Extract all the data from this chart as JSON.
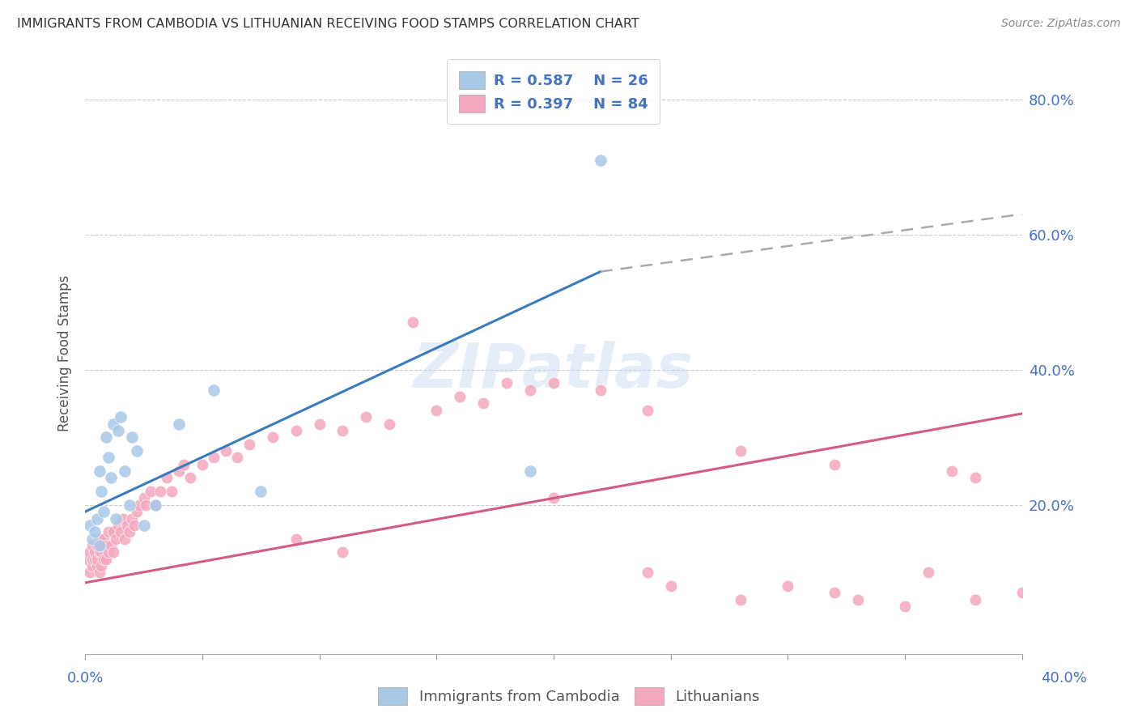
{
  "title": "IMMIGRANTS FROM CAMBODIA VS LITHUANIAN RECEIVING FOOD STAMPS CORRELATION CHART",
  "source": "Source: ZipAtlas.com",
  "ylabel": "Receiving Food Stamps",
  "ytick_labels": [
    "20.0%",
    "40.0%",
    "60.0%",
    "80.0%"
  ],
  "ytick_values": [
    0.2,
    0.4,
    0.6,
    0.8
  ],
  "xlim": [
    0.0,
    0.4
  ],
  "ylim": [
    -0.02,
    0.87
  ],
  "background_color": "#ffffff",
  "legend_color1": "#a8c8e8",
  "legend_color2": "#f4a8be",
  "cambodia_color": "#a8c8e8",
  "lithuanian_color": "#f4a8be",
  "trend_cambodia_color": "#3a7abf",
  "trend_lithuanian_color": "#d45a8a",
  "grid_color": "#cccccc",
  "title_color": "#333333",
  "axis_label_color": "#4472c4",
  "cambodia_x": [
    0.002,
    0.003,
    0.004,
    0.005,
    0.006,
    0.006,
    0.007,
    0.008,
    0.009,
    0.01,
    0.011,
    0.012,
    0.013,
    0.014,
    0.015,
    0.017,
    0.019,
    0.02,
    0.022,
    0.025,
    0.03,
    0.04,
    0.055,
    0.075,
    0.19,
    0.22
  ],
  "cambodia_y": [
    0.17,
    0.15,
    0.16,
    0.18,
    0.14,
    0.25,
    0.22,
    0.19,
    0.3,
    0.27,
    0.24,
    0.32,
    0.18,
    0.31,
    0.33,
    0.25,
    0.2,
    0.3,
    0.28,
    0.17,
    0.2,
    0.32,
    0.37,
    0.22,
    0.25,
    0.71
  ],
  "lithuanian_x": [
    0.001,
    0.002,
    0.002,
    0.003,
    0.003,
    0.003,
    0.004,
    0.004,
    0.005,
    0.005,
    0.005,
    0.006,
    0.006,
    0.006,
    0.007,
    0.007,
    0.007,
    0.008,
    0.008,
    0.009,
    0.009,
    0.01,
    0.01,
    0.011,
    0.012,
    0.012,
    0.013,
    0.014,
    0.015,
    0.016,
    0.017,
    0.018,
    0.019,
    0.02,
    0.021,
    0.022,
    0.023,
    0.025,
    0.026,
    0.028,
    0.03,
    0.032,
    0.035,
    0.037,
    0.04,
    0.042,
    0.045,
    0.05,
    0.055,
    0.06,
    0.065,
    0.07,
    0.08,
    0.09,
    0.1,
    0.11,
    0.12,
    0.13,
    0.15,
    0.16,
    0.17,
    0.18,
    0.19,
    0.2,
    0.22,
    0.24,
    0.25,
    0.28,
    0.3,
    0.32,
    0.33,
    0.35,
    0.36,
    0.38,
    0.4,
    0.14,
    0.2,
    0.24,
    0.28,
    0.32,
    0.37,
    0.38,
    0.09,
    0.11
  ],
  "lithuanian_y": [
    0.12,
    0.1,
    0.13,
    0.11,
    0.12,
    0.14,
    0.12,
    0.13,
    0.11,
    0.12,
    0.14,
    0.1,
    0.13,
    0.15,
    0.11,
    0.13,
    0.14,
    0.12,
    0.15,
    0.12,
    0.14,
    0.13,
    0.16,
    0.14,
    0.13,
    0.16,
    0.15,
    0.17,
    0.16,
    0.18,
    0.15,
    0.17,
    0.16,
    0.18,
    0.17,
    0.19,
    0.2,
    0.21,
    0.2,
    0.22,
    0.2,
    0.22,
    0.24,
    0.22,
    0.25,
    0.26,
    0.24,
    0.26,
    0.27,
    0.28,
    0.27,
    0.29,
    0.3,
    0.31,
    0.32,
    0.31,
    0.33,
    0.32,
    0.34,
    0.36,
    0.35,
    0.38,
    0.37,
    0.38,
    0.37,
    0.1,
    0.08,
    0.06,
    0.08,
    0.07,
    0.06,
    0.05,
    0.1,
    0.06,
    0.07,
    0.47,
    0.21,
    0.34,
    0.28,
    0.26,
    0.25,
    0.24,
    0.15,
    0.13
  ],
  "trend_cambodia_x0": 0.0,
  "trend_cambodia_y0": 0.19,
  "trend_cambodia_x1": 0.22,
  "trend_cambodia_y1": 0.545,
  "trend_dash_x0": 0.22,
  "trend_dash_y0": 0.545,
  "trend_dash_x1": 0.4,
  "trend_dash_y1": 0.63,
  "trend_lith_x0": 0.0,
  "trend_lith_y0": 0.085,
  "trend_lith_x1": 0.4,
  "trend_lith_y1": 0.335
}
